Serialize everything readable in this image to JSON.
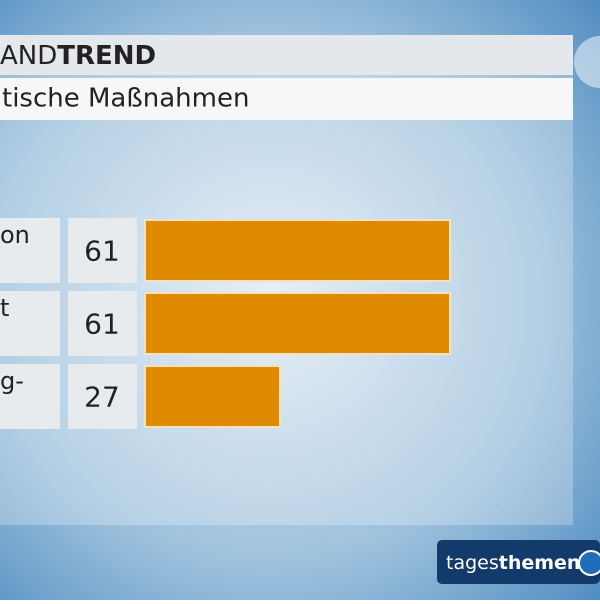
{
  "chart_data": {
    "type": "bar",
    "orientation": "horizontal",
    "title_regular": "AND",
    "title_bold": "TREND",
    "subtitle": "tische Maßnahmen",
    "categories": [
      "on",
      "t",
      "g-"
    ],
    "values": [
      61,
      61,
      27
    ],
    "color": "#e08a00"
  },
  "logo": {
    "regular": "tages",
    "bold": "themen"
  }
}
